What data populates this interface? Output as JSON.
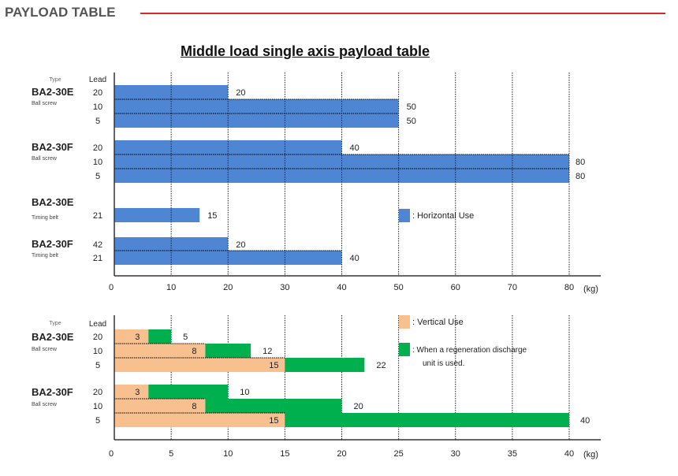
{
  "header": {
    "title": "PAYLOAD TABLE"
  },
  "chart_data": [
    {
      "type": "bar",
      "title": "Middle load single axis payload table",
      "xlabel": "(kg)",
      "xlim": [
        0,
        80
      ],
      "xticks": [
        0,
        10,
        20,
        30,
        40,
        50,
        60,
        70,
        80
      ],
      "col_headers": {
        "type": "Type",
        "lead": "Lead"
      },
      "groups": [
        {
          "model": "BA2-30E",
          "drive": "Ball screw",
          "rows": [
            {
              "lead": "20",
              "value": 20
            },
            {
              "lead": "10",
              "value": 50
            },
            {
              "lead": "5",
              "value": 50
            }
          ]
        },
        {
          "model": "BA2-30F",
          "drive": "Ball screw",
          "rows": [
            {
              "lead": "20",
              "value": 40
            },
            {
              "lead": "10",
              "value": 80
            },
            {
              "lead": "5",
              "value": 80
            }
          ]
        },
        {
          "model": "BA2-30E",
          "drive": "Timing belt",
          "rows": [
            {
              "lead": "21",
              "value": 15
            }
          ]
        },
        {
          "model": "BA2-30F",
          "drive": "Timing belt",
          "rows": [
            {
              "lead": "42",
              "value": 20
            },
            {
              "lead": "21",
              "value": 40
            }
          ]
        }
      ],
      "legend": [
        {
          "label": "Horizontal Use",
          "color": "#4f86d3"
        }
      ]
    },
    {
      "type": "bar",
      "stacked": true,
      "xlabel": "(kg)",
      "xlim": [
        0,
        40
      ],
      "xticks": [
        0,
        5,
        10,
        15,
        20,
        25,
        30,
        35,
        40
      ],
      "col_headers": {
        "type": "Type",
        "lead": "Lead"
      },
      "groups": [
        {
          "model": "BA2-30E",
          "drive": "Ball screw",
          "rows": [
            {
              "lead": "20",
              "vertical": 3,
              "regen": 5
            },
            {
              "lead": "10",
              "vertical": 8,
              "regen": 12
            },
            {
              "lead": "5",
              "vertical": 15,
              "regen": 22
            }
          ]
        },
        {
          "model": "BA2-30F",
          "drive": "Ball screw",
          "rows": [
            {
              "lead": "20",
              "vertical": 3,
              "regen": 10
            },
            {
              "lead": "10",
              "vertical": 8,
              "regen": 20
            },
            {
              "lead": "5",
              "vertical": 15,
              "regen": 40
            }
          ]
        }
      ],
      "legend": [
        {
          "label": "Vertical Use",
          "color": "#f8c08e"
        },
        {
          "label": "When a regeneration discharge unit is used.",
          "color": "#00b04f"
        }
      ]
    }
  ]
}
